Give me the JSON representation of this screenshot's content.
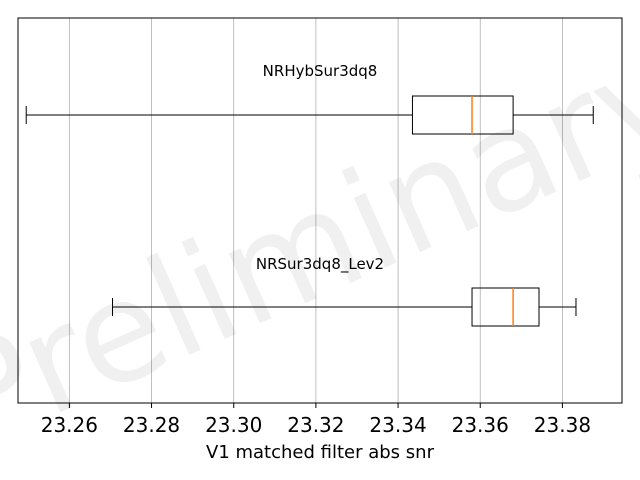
{
  "chart_data": {
    "type": "boxplot",
    "orientation": "horizontal",
    "xlabel": "V1 matched filter abs snr",
    "xlim": [
      23.2475,
      23.3945
    ],
    "xticks": [
      23.26,
      23.28,
      23.3,
      23.32,
      23.34,
      23.36,
      23.38
    ],
    "xtick_labels": [
      "23.26",
      "23.28",
      "23.30",
      "23.32",
      "23.34",
      "23.36",
      "23.38"
    ],
    "grid": "x",
    "watermark": "Preliminary",
    "colors": {
      "box": "#000000",
      "median": "#ff7f0e",
      "grid": "#b0b0b0"
    },
    "series": [
      {
        "name": "NRHybSur3dq8",
        "whisker_low": 23.2495,
        "q1": 23.3435,
        "median": 23.358,
        "q3": 23.368,
        "whisker_high": 23.3875
      },
      {
        "name": "NRSur3dq8_Lev2",
        "whisker_low": 23.2705,
        "q1": 23.358,
        "median": 23.368,
        "q3": 23.3743,
        "whisker_high": 23.3833
      }
    ]
  }
}
